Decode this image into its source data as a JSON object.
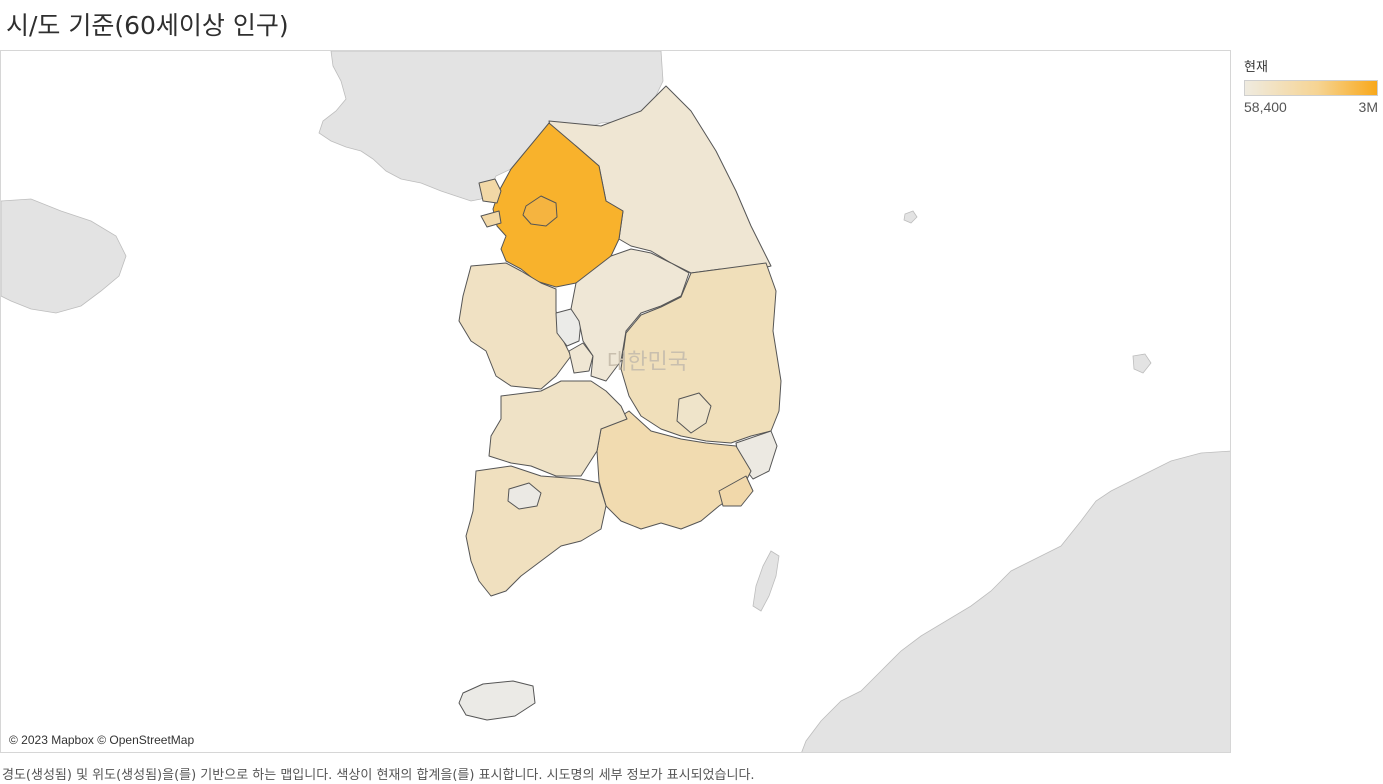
{
  "title": "시/도 기준(60세이상 인구)",
  "legend": {
    "title": "현재",
    "min_label": "58,400",
    "max_label": "3M",
    "color_low": "#efebe0",
    "color_mid": "#f6d493",
    "color_high": "#f8a81a"
  },
  "map": {
    "country_label": "대한민국",
    "attribution": "© 2023 Mapbox © OpenStreetMap",
    "land_color": "#e3e3e3",
    "sea_color": "#ffffff",
    "border_color": "#555555",
    "regions": [
      {
        "id": "gyeonggi",
        "color": "#f8b22c"
      },
      {
        "id": "seoul",
        "color": "#f5b440"
      },
      {
        "id": "incheon",
        "color": "#f2d8a6"
      },
      {
        "id": "gangwon",
        "color": "#efe6d3"
      },
      {
        "id": "chungbuk",
        "color": "#efe7d6"
      },
      {
        "id": "chungnam",
        "color": "#f0e1c3"
      },
      {
        "id": "sejong",
        "color": "#ebebe8"
      },
      {
        "id": "daejeon",
        "color": "#efe6d3"
      },
      {
        "id": "gyeongbuk",
        "color": "#f0dfba"
      },
      {
        "id": "daegu",
        "color": "#efe4ca"
      },
      {
        "id": "ulsan",
        "color": "#ece9e2"
      },
      {
        "id": "gyeongnam",
        "color": "#f1dbb0"
      },
      {
        "id": "busan",
        "color": "#f1d8aa"
      },
      {
        "id": "jeonbuk",
        "color": "#efe2c6"
      },
      {
        "id": "gwangju",
        "color": "#ebe9e4"
      },
      {
        "id": "jeonnam",
        "color": "#f0e0bf"
      },
      {
        "id": "jeju",
        "color": "#ebeae6"
      }
    ]
  },
  "footnote": "경도(생성됨) 및 위도(생성됨)을(를) 기반으로 하는 맵입니다. 색상이 현재의 합계을(를) 표시합니다. 시도명의 세부 정보가 표시되었습니다."
}
